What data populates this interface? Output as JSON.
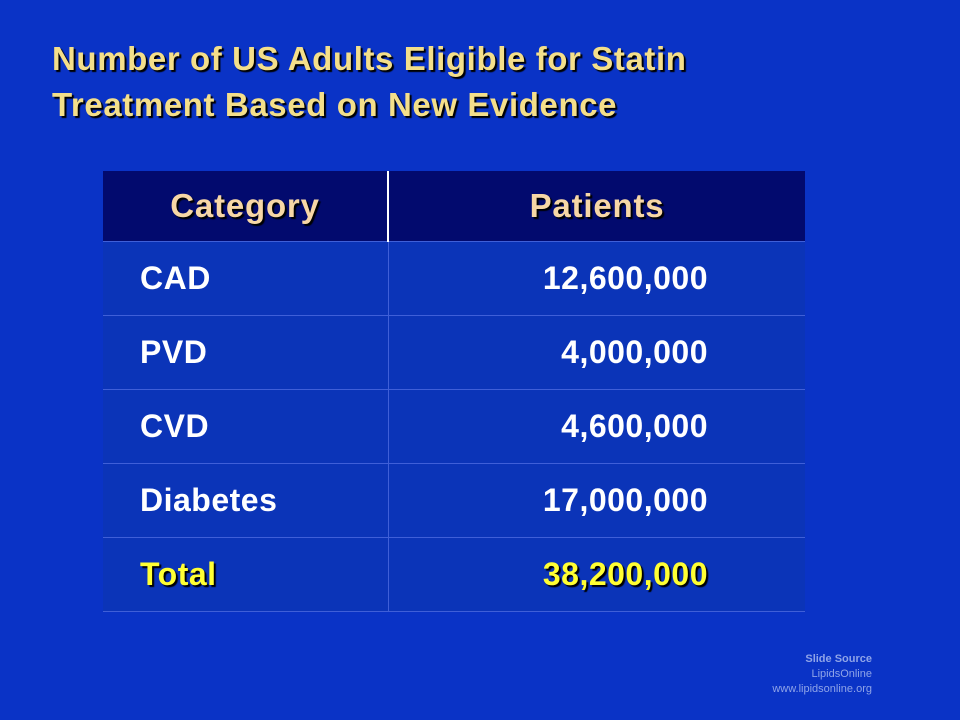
{
  "slide": {
    "title_line1": "Number of US Adults Eligible for Statin",
    "title_line2": "Treatment Based on New Evidence"
  },
  "table": {
    "headers": {
      "category": "Category",
      "patients": "Patients"
    },
    "rows": [
      {
        "category": "CAD",
        "patients": "12,600,000"
      },
      {
        "category": "PVD",
        "patients": "4,000,000"
      },
      {
        "category": "CVD",
        "patients": "4,600,000"
      },
      {
        "category": "Diabetes",
        "patients": "17,000,000"
      }
    ],
    "total": {
      "category": "Total",
      "patients": "38,200,000"
    }
  },
  "source": {
    "heading": "Slide Source",
    "name": "LipidsOnline",
    "url": "www.lipidsonline.org"
  },
  "colors": {
    "background": "#0a33c6",
    "title": "#f4df8a",
    "header_bg": "#020a6e",
    "header_text": "#f7d7a6",
    "total_text": "#ffff33"
  }
}
